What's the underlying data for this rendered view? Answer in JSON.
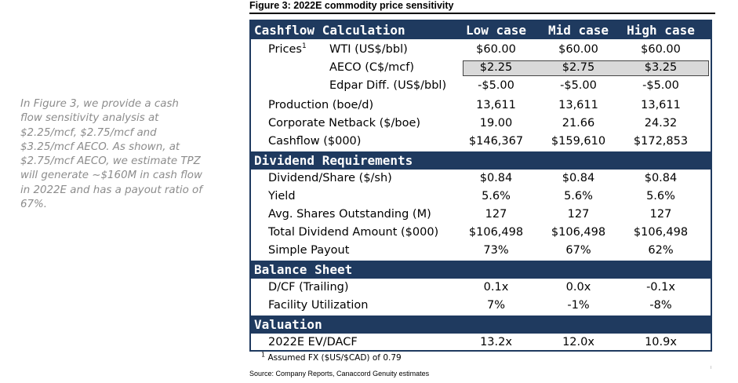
{
  "sidenote": "In Figure 3, we provide a cash flow sensitivity analysis at $2.25/mcf, $2.75/mcf and $3.25/mcf AECO. As shown, at $2.75/mcf AECO, we estimate TPZ will generate ~$160M in cash flow in 2022E and has a payout ratio of 67%.",
  "figure_title": "Figure 3: 2022E commodity price sensitivity",
  "columns": [
    "Low case",
    "Mid case",
    "High case"
  ],
  "sections": {
    "cashflow": "Cashflow Calculation",
    "dividend": "Dividend Requirements",
    "balance": "Balance Sheet",
    "valuation": "Valuation"
  },
  "rows": {
    "prices_label": "Prices",
    "prices_sup": "1",
    "wti": {
      "label": "WTI (US$/bbl)",
      "values": [
        "$60.00",
        "$60.00",
        "$60.00"
      ]
    },
    "aeco": {
      "label": "AECO (C$/mcf)",
      "values": [
        "$2.25",
        "$2.75",
        "$3.25"
      ]
    },
    "edpar": {
      "label": "Edpar Diff. (US$/bbl)",
      "values": [
        "-$5.00",
        "-$5.00",
        "-$5.00"
      ]
    },
    "production": {
      "label": "Production (boe/d)",
      "values": [
        "13,611",
        "13,611",
        "13,611"
      ]
    },
    "netback": {
      "label": "Corporate Netback ($/boe)",
      "values": [
        "19.00",
        "21.66",
        "24.32"
      ]
    },
    "cashflow": {
      "label": "Cashflow ($000)",
      "values": [
        "$146,367",
        "$159,610",
        "$172,853"
      ]
    },
    "dps": {
      "label": "Dividend/Share ($/sh)",
      "values": [
        "$0.84",
        "$0.84",
        "$0.84"
      ]
    },
    "yield": {
      "label": "Yield",
      "values": [
        "5.6%",
        "5.6%",
        "5.6%"
      ]
    },
    "shares": {
      "label": "Avg. Shares Outstanding (M)",
      "values": [
        "127",
        "127",
        "127"
      ]
    },
    "total_div": {
      "label": "Total Dividend Amount ($000)",
      "values": [
        "$106,498",
        "$106,498",
        "$106,498"
      ]
    },
    "payout": {
      "label": "Simple Payout",
      "values": [
        "73%",
        "67%",
        "62%"
      ]
    },
    "dcf": {
      "label": "D/CF (Trailing)",
      "values": [
        "0.1x",
        "0.0x",
        "-0.1x"
      ]
    },
    "facility": {
      "label": "Facility Utilization",
      "values": [
        "7%",
        "-1%",
        "-8%"
      ]
    },
    "ev": {
      "label": "2022E EV/DACF",
      "values": [
        "13.2x",
        "12.0x",
        "10.9x"
      ]
    }
  },
  "footnote": {
    "sup": "1",
    "text": "Assumed FX ($US/$CAD) of 0.79"
  },
  "source": "Source: Company Reports, Canaccord Genuity estimates",
  "colors": {
    "header_bg": "#1f3a5f",
    "highlight_bg": "#d9d9d9",
    "sidenote_text": "#8c8c8c"
  }
}
